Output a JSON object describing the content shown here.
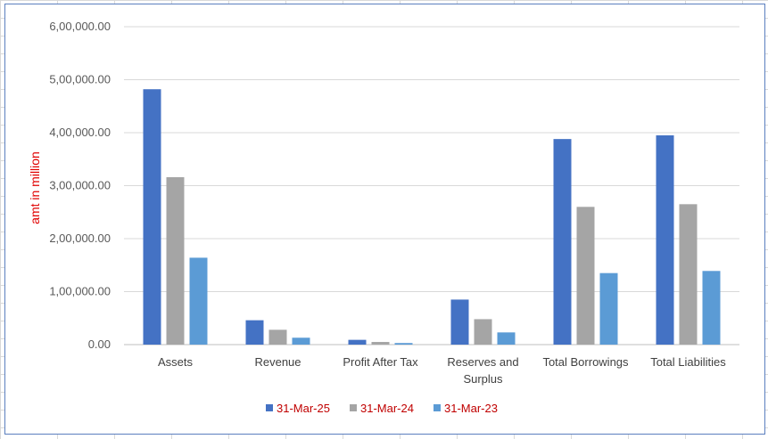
{
  "chart_data": {
    "type": "bar",
    "title": "",
    "xlabel": "",
    "ylabel": "amt in million",
    "ylim": [
      0,
      600000
    ],
    "yticks": [
      0,
      100000,
      200000,
      300000,
      400000,
      500000,
      600000
    ],
    "ytick_labels": [
      "0.00",
      "1,00,000.00",
      "2,00,000.00",
      "3,00,000.00",
      "4,00,000.00",
      "5,00,000.00",
      "6,00,000.00"
    ],
    "categories": [
      "Assets",
      "Revenue",
      "Profit After Tax",
      "Reserves and Surplus",
      "Total Borrowings",
      "Total Liabilities"
    ],
    "category_label_lines": [
      [
        "Assets"
      ],
      [
        "Revenue"
      ],
      [
        "Profit After Tax"
      ],
      [
        "Reserves and",
        "Surplus"
      ],
      [
        "Total Borrowings"
      ],
      [
        "Total Liabilities"
      ]
    ],
    "series": [
      {
        "name": "31-Mar-25",
        "color": "#4472c4",
        "values": [
          482000,
          46000,
          9000,
          85000,
          388000,
          395000
        ]
      },
      {
        "name": "31-Mar-24",
        "color": "#a5a5a5",
        "values": [
          316000,
          28000,
          5000,
          48000,
          260000,
          265000
        ]
      },
      {
        "name": "31-Mar-23",
        "color": "#5b9bd5",
        "values": [
          164000,
          13000,
          3000,
          23000,
          135000,
          139000
        ]
      }
    ],
    "grid": true,
    "legend": "bottom-center"
  },
  "colors": {
    "axis_title": "#e00000",
    "legend_text": "#c00000",
    "frame_border": "#5b7fbf"
  }
}
